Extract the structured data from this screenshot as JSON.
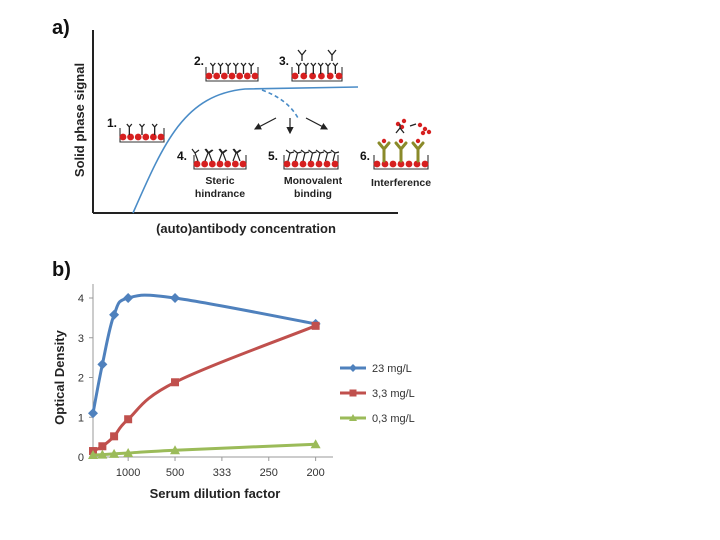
{
  "panel_a": {
    "label": "a)",
    "ylabel": "Solid phase signal",
    "xlabel": "(auto)antibody concentration",
    "steps": [
      {
        "num": "1.",
        "caption": [
          ""
        ]
      },
      {
        "num": "2.",
        "caption": [
          ""
        ]
      },
      {
        "num": "3.",
        "caption": [
          ""
        ]
      },
      {
        "num": "4.",
        "caption": [
          "Steric",
          "hindrance"
        ]
      },
      {
        "num": "5.",
        "caption": [
          "Monovalent",
          "binding"
        ]
      },
      {
        "num": "6.",
        "caption": [
          "Interference",
          ""
        ]
      }
    ],
    "colors": {
      "curve": "#4a8cc7",
      "bead": "#d62020",
      "antibody": "#222222",
      "interferent": "#8a8a2a"
    }
  },
  "panel_b": {
    "label": "b)",
    "chart_data": {
      "type": "line",
      "title": "",
      "xlabel": "Serum dilution factor",
      "ylabel": "Optical Density",
      "x_tick_labels": [
        "1000",
        "500",
        "333",
        "250",
        "200"
      ],
      "y_ticks": [
        0,
        1,
        2,
        3,
        4
      ],
      "ylim": [
        0,
        4.3
      ],
      "x_note": "serum fraction (1/dilution)",
      "xlim": [
        0.00025,
        0.0052
      ],
      "series": [
        {
          "name": "23 mg/L",
          "color": "#4f81bd",
          "marker": "diamond",
          "x": [
            0.00025,
            0.00045,
            0.0007,
            0.001,
            0.002,
            0.005
          ],
          "y": [
            1.1,
            2.33,
            3.58,
            4.0,
            4.0,
            3.35
          ]
        },
        {
          "name": "3,3 mg/L",
          "color": "#c0504d",
          "marker": "square",
          "x": [
            0.00025,
            0.00045,
            0.0007,
            0.001,
            0.002,
            0.005
          ],
          "y": [
            0.15,
            0.27,
            0.52,
            0.95,
            1.88,
            3.3
          ]
        },
        {
          "name": "0,3 mg/L",
          "color": "#9bbb59",
          "marker": "triangle",
          "x": [
            0.00025,
            0.00045,
            0.0007,
            0.001,
            0.002,
            0.005
          ],
          "y": [
            0.05,
            0.06,
            0.08,
            0.1,
            0.17,
            0.32
          ]
        }
      ]
    }
  }
}
